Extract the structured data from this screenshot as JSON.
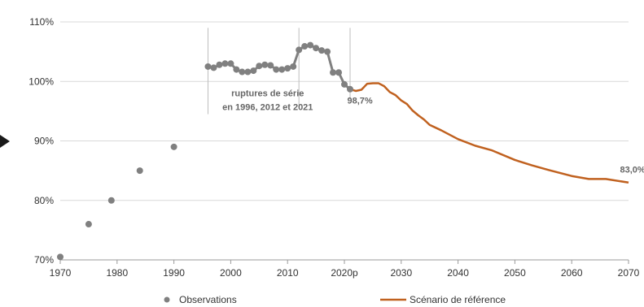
{
  "chart_data": {
    "type": "line",
    "title": "",
    "xlabel": "",
    "ylabel": "",
    "xlim": [
      1970,
      2070
    ],
    "ylim": [
      70,
      110
    ],
    "grid": true,
    "legend_position": "bottom",
    "x_ticks": [
      "1970",
      "1980",
      "1990",
      "2000",
      "2010",
      "2020p",
      "2030",
      "2040",
      "2050",
      "2060",
      "2070"
    ],
    "y_ticks": [
      "70%",
      "80%",
      "90%",
      "100%",
      "110%"
    ],
    "series": [
      {
        "name": "Observations",
        "type": "scatter",
        "color": "#808080",
        "x": [
          1970,
          1975,
          1979,
          1984,
          1990,
          1996,
          1997,
          1998,
          1999,
          2000,
          2001,
          2002,
          2003,
          2004,
          2005,
          2006,
          2007,
          2008,
          2009,
          2010,
          2011,
          2012,
          2013,
          2014,
          2015,
          2016,
          2017,
          2018,
          2019,
          2020,
          2021
        ],
        "y": [
          70.5,
          76,
          80,
          85,
          89,
          102.5,
          102.3,
          102.8,
          103,
          103,
          102,
          101.6,
          101.6,
          101.8,
          102.6,
          102.8,
          102.7,
          102,
          102,
          102.2,
          102.5,
          105.3,
          105.9,
          106.1,
          105.6,
          105.2,
          105,
          101.5,
          101.5,
          99.5,
          98.7
        ],
        "segments": [
          [
            1996,
            2012
          ],
          [
            2012,
            2018
          ],
          [
            2018,
            2021
          ]
        ]
      },
      {
        "name": "Scénario de référence",
        "type": "line",
        "color": "#c0611f",
        "x": [
          2021,
          2022,
          2023,
          2024,
          2025,
          2026,
          2027,
          2028,
          2029,
          2030,
          2031,
          2032,
          2033,
          2034,
          2035,
          2037,
          2040,
          2043,
          2046,
          2050,
          2053,
          2056,
          2060,
          2063,
          2066,
          2070
        ],
        "y": [
          98.7,
          98.4,
          98.6,
          99.6,
          99.7,
          99.7,
          99.2,
          98.2,
          97.7,
          96.8,
          96.2,
          95.1,
          94.3,
          93.6,
          92.7,
          91.8,
          90.3,
          89.2,
          88.4,
          86.8,
          85.9,
          85.1,
          84.1,
          83.6,
          83.6,
          83.0
        ]
      }
    ],
    "annotations": [
      {
        "text_lines": [
          "ruptures de série",
          "en 1996, 2012 et 2021"
        ],
        "color": "#666666"
      },
      {
        "text": "98,7%",
        "color": "#666666"
      },
      {
        "text": "83,0%",
        "color": "#c0611f"
      }
    ],
    "break_lines_x": [
      1996,
      2012,
      2021
    ]
  }
}
